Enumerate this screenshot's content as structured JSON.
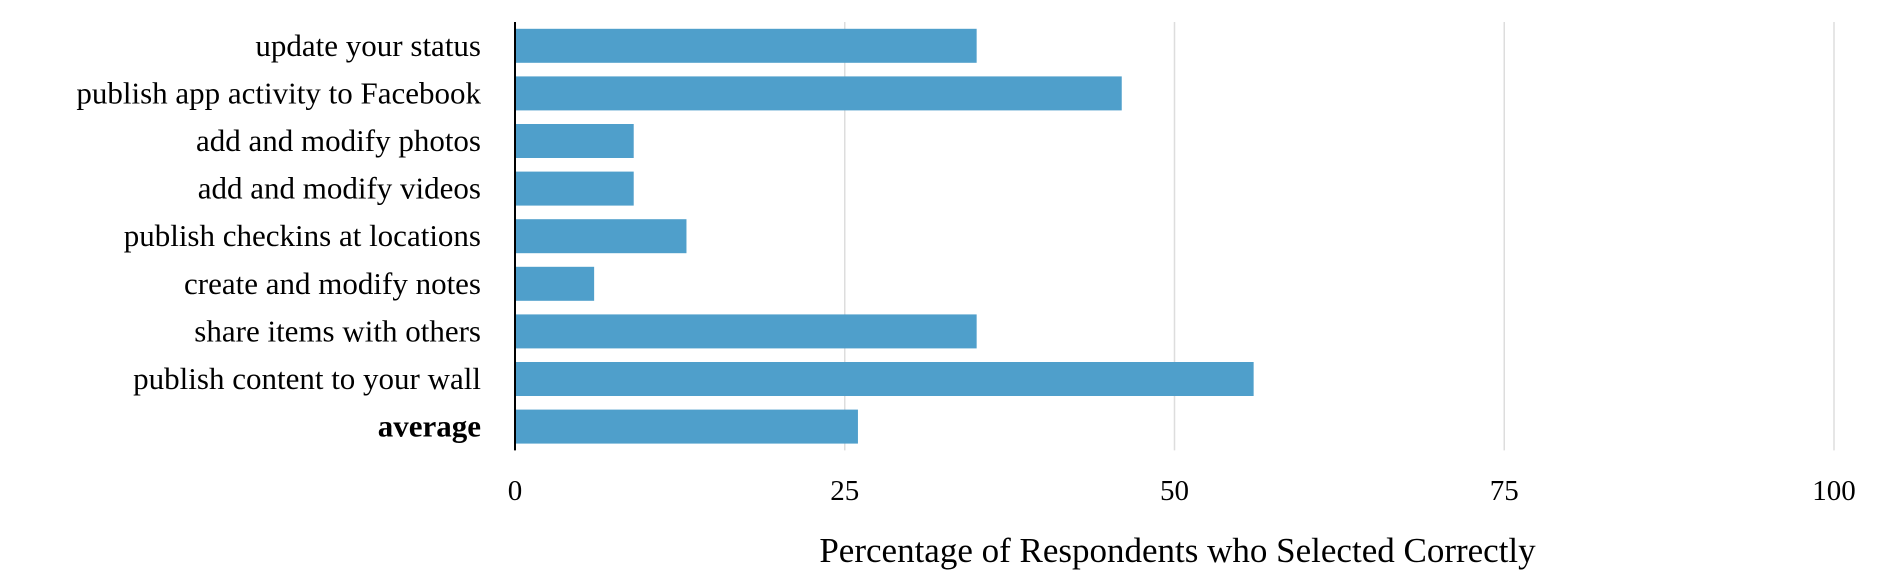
{
  "chart_data": {
    "type": "bar",
    "orientation": "horizontal",
    "categories": [
      "update your status",
      "publish app activity to Facebook",
      "add and modify photos",
      "add and modify videos",
      "publish checkins at locations",
      "create and modify notes",
      "share items with others",
      "publish content to your wall",
      "average"
    ],
    "bold_categories": [
      "average"
    ],
    "values": [
      35,
      46,
      9,
      9,
      13,
      6,
      35,
      56,
      26
    ],
    "xlabel": "Percentage of Respondents who Selected Correctly",
    "ylabel": "",
    "xlim": [
      0,
      100
    ],
    "xticks": [
      0,
      25,
      50,
      75,
      100
    ],
    "grid": "vertical",
    "legend": "none",
    "bar_color": "#4f9fcb",
    "grid_color": "#dddddd",
    "axis_color": "#000000"
  }
}
